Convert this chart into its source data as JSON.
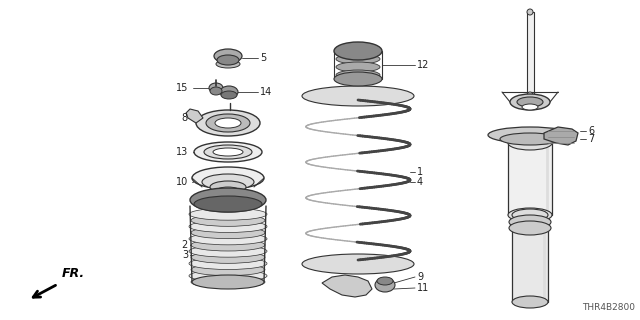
{
  "bg_color": "#ffffff",
  "diagram_code": "THR4B2800",
  "fr_label": "FR.",
  "line_color": "#333333",
  "label_color": "#222222",
  "label_fontsize": 7.0
}
